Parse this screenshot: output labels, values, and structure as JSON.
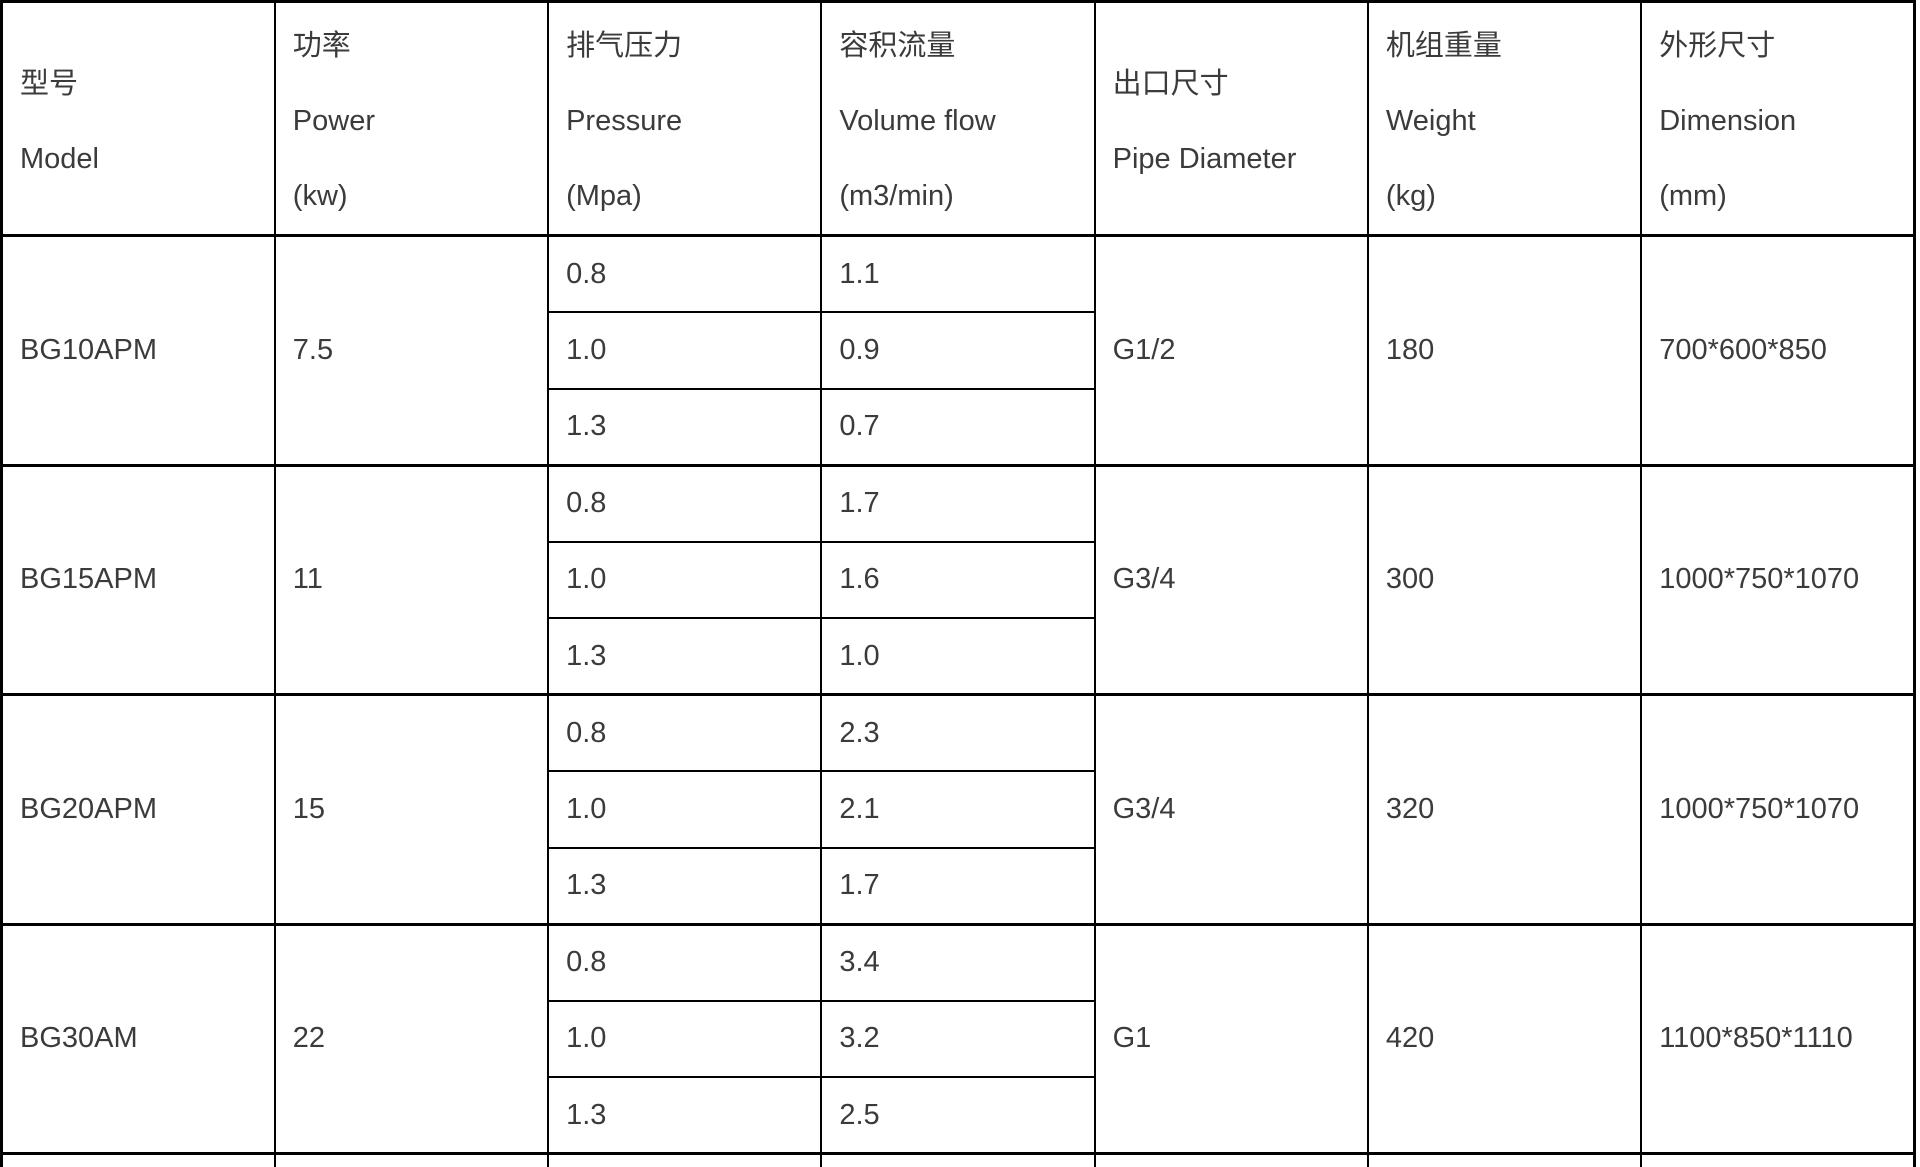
{
  "colors": {
    "text": "#3b3b3b",
    "border": "#000000",
    "background": "#ffffff"
  },
  "table": {
    "columns": [
      {
        "zh": "型号",
        "en": "Model",
        "unit": ""
      },
      {
        "zh": "功率",
        "en": "Power",
        "unit": "(kw)"
      },
      {
        "zh": "排气压力",
        "en": "Pressure",
        "unit": "(Mpa)"
      },
      {
        "zh": "容积流量",
        "en": "Volume flow",
        "unit": "(m3/min)"
      },
      {
        "zh": "出口尺寸",
        "en": "Pipe Diameter",
        "unit": ""
      },
      {
        "zh": "机组重量",
        "en": "Weight",
        "unit": "(kg)"
      },
      {
        "zh": "外形尺寸",
        "en": "Dimension",
        "unit": "(mm)"
      }
    ],
    "rows": [
      {
        "model": "BG10APM",
        "power": "7.5",
        "pipe_diameter": "G1/2",
        "weight": "180",
        "dimension": "700*600*850",
        "pressure_flow": [
          [
            "0.8",
            "1.1"
          ],
          [
            "1.0",
            "0.9"
          ],
          [
            "1.3",
            "0.7"
          ]
        ]
      },
      {
        "model": "BG15APM",
        "power": "11",
        "pipe_diameter": "G3/4",
        "weight": "300",
        "dimension": "1000*750*1070",
        "pressure_flow": [
          [
            "0.8",
            "1.7"
          ],
          [
            "1.0",
            "1.6"
          ],
          [
            "1.3",
            "1.0"
          ]
        ]
      },
      {
        "model": "BG20APM",
        "power": "15",
        "pipe_diameter": "G3/4",
        "weight": "320",
        "dimension": "1000*750*1070",
        "pressure_flow": [
          [
            "0.8",
            "2.3"
          ],
          [
            "1.0",
            "2.1"
          ],
          [
            "1.3",
            "1.7"
          ]
        ]
      },
      {
        "model": "BG30AM",
        "power": "22",
        "pipe_diameter": "G1",
        "weight": "420",
        "dimension": "1100*850*1110",
        "pressure_flow": [
          [
            "0.8",
            "3.4"
          ],
          [
            "1.0",
            "3.2"
          ],
          [
            "1.3",
            "2.5"
          ]
        ]
      }
    ]
  }
}
